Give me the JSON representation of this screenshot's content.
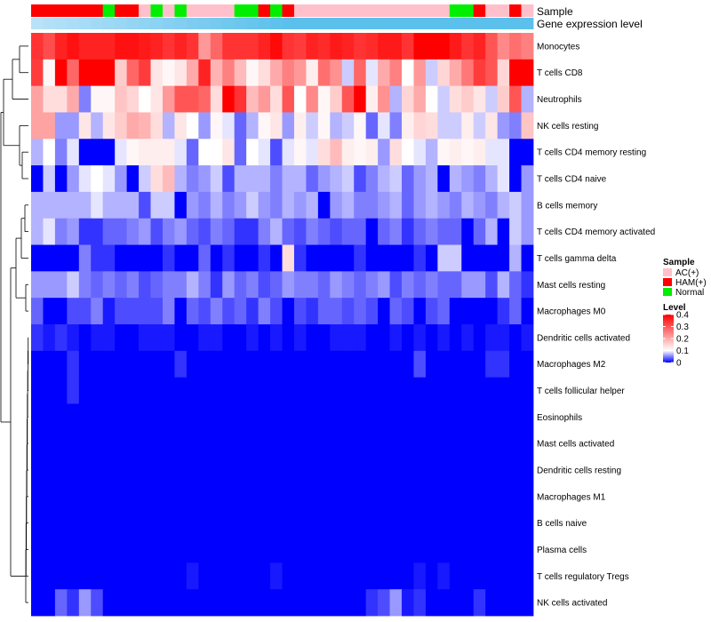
{
  "chart_data": {
    "type": "heatmap",
    "title": "",
    "annotation_tracks": [
      {
        "name": "Sample",
        "label": "Sample"
      },
      {
        "name": "Gene expression level",
        "label": "Gene expression level"
      }
    ],
    "sample_groups": [
      "HAM(+)",
      "HAM(+)",
      "HAM(+)",
      "HAM(+)",
      "HAM(+)",
      "HAM(+)",
      "Normal",
      "HAM(+)",
      "HAM(+)",
      "AC(+)",
      "Normal",
      "AC(+)",
      "Normal",
      "AC(+)",
      "AC(+)",
      "AC(+)",
      "AC(+)",
      "Normal",
      "Normal",
      "HAM(+)",
      "Normal",
      "HAM(+)",
      "AC(+)",
      "AC(+)",
      "AC(+)",
      "AC(+)",
      "AC(+)",
      "AC(+)",
      "AC(+)",
      "AC(+)",
      "AC(+)",
      "AC(+)",
      "AC(+)",
      "AC(+)",
      "AC(+)",
      "Normal",
      "Normal",
      "HAM(+)",
      "AC(+)",
      "AC(+)",
      "HAM(+)",
      "AC(+)"
    ],
    "gene_expression_track_color": "#5bc0eb",
    "gene_expression_track_start_color": "#b8e2f8",
    "rows": [
      "Monocytes",
      "T cells CD8",
      "Neutrophils",
      "NK cells resting",
      "T cells CD4 memory resting",
      "T cells CD4 naive",
      "B cells memory",
      "T cells CD4 memory activated",
      "T cells gamma delta",
      "Mast cells resting",
      "Macrophages M0",
      "Dendritic cells activated",
      "Macrophages M2",
      "T cells follicular helper",
      "Eosinophils",
      "Mast cells activated",
      "Dendritic cells resting",
      "Macrophages M1",
      "B cells naive",
      "Plasma cells",
      "T cells regulatory  Tregs",
      "NK cells activated"
    ],
    "values": [
      [
        0.34,
        0.31,
        0.36,
        0.38,
        0.36,
        0.36,
        0.36,
        0.38,
        0.38,
        0.37,
        0.36,
        0.34,
        0.36,
        0.34,
        0.22,
        0.28,
        0.34,
        0.34,
        0.34,
        0.36,
        0.39,
        0.34,
        0.33,
        0.36,
        0.35,
        0.37,
        0.36,
        0.34,
        0.35,
        0.37,
        0.37,
        0.34,
        0.4,
        0.4,
        0.4,
        0.37,
        0.34,
        0.36,
        0.3,
        0.24,
        0.27,
        0.25
      ],
      [
        0.33,
        0.11,
        0.4,
        0.28,
        0.4,
        0.4,
        0.4,
        0.16,
        0.28,
        0.33,
        0.13,
        0.11,
        0.13,
        0.2,
        0.36,
        0.19,
        0.25,
        0.18,
        0.11,
        0.14,
        0.2,
        0.25,
        0.22,
        0.12,
        0.27,
        0.23,
        0.08,
        0.28,
        0.09,
        0.2,
        0.25,
        0.1,
        0.22,
        0.08,
        0.15,
        0.2,
        0.26,
        0.33,
        0.3,
        0.15,
        0.4,
        0.4
      ],
      [
        0.21,
        0.14,
        0.14,
        0.2,
        0.05,
        0.11,
        0.11,
        0.17,
        0.15,
        0.1,
        0.13,
        0.22,
        0.3,
        0.3,
        0.28,
        0.14,
        0.4,
        0.34,
        0.18,
        0.22,
        0.14,
        0.3,
        0.1,
        0.24,
        0.11,
        0.16,
        0.3,
        0.4,
        0.12,
        0.23,
        0.07,
        0.15,
        0.2,
        0.1,
        0.08,
        0.14,
        0.16,
        0.13,
        0.08,
        0.16,
        0.3,
        0.07
      ],
      [
        0.21,
        0.21,
        0.06,
        0.06,
        0.13,
        0.07,
        0.13,
        0.16,
        0.2,
        0.19,
        0.14,
        0.07,
        0.13,
        0.1,
        0.06,
        0.11,
        0.09,
        0.04,
        0.07,
        0.11,
        0.13,
        0.06,
        0.12,
        0.08,
        0.11,
        0.07,
        0.08,
        0.11,
        0.04,
        0.09,
        0.05,
        0.12,
        0.15,
        0.14,
        0.08,
        0.08,
        0.12,
        0.08,
        0.13,
        0.06,
        0.05,
        0.17
      ],
      [
        0.07,
        0.1,
        0.05,
        0.09,
        0.0,
        0.0,
        0.0,
        0.09,
        0.11,
        0.12,
        0.12,
        0.12,
        0.09,
        0.04,
        0.1,
        0.1,
        0.13,
        0.04,
        0.1,
        0.09,
        0.03,
        0.09,
        0.11,
        0.09,
        0.14,
        0.18,
        0.12,
        0.11,
        0.12,
        0.06,
        0.14,
        0.1,
        0.09,
        0.07,
        0.11,
        0.12,
        0.11,
        0.12,
        0.09,
        0.09,
        0.0,
        0.0
      ],
      [
        0.0,
        0.08,
        0.0,
        0.06,
        0.09,
        0.1,
        0.09,
        0.06,
        0.0,
        0.08,
        0.14,
        0.18,
        0.07,
        0.05,
        0.06,
        0.08,
        0.03,
        0.07,
        0.07,
        0.07,
        0.05,
        0.07,
        0.07,
        0.04,
        0.06,
        0.07,
        0.08,
        0.03,
        0.05,
        0.07,
        0.08,
        0.04,
        0.06,
        0.07,
        0.0,
        0.07,
        0.06,
        0.05,
        0.07,
        0.09,
        0.0,
        0.06
      ],
      [
        0.07,
        0.07,
        0.07,
        0.07,
        0.07,
        0.09,
        0.07,
        0.07,
        0.07,
        0.03,
        0.08,
        0.08,
        0.0,
        0.06,
        0.05,
        0.07,
        0.05,
        0.06,
        0.08,
        0.06,
        0.05,
        0.07,
        0.06,
        0.07,
        0.0,
        0.06,
        0.07,
        0.05,
        0.05,
        0.06,
        0.07,
        0.04,
        0.06,
        0.07,
        0.06,
        0.05,
        0.07,
        0.06,
        0.05,
        0.07,
        0.08,
        0.06
      ],
      [
        0.07,
        0.09,
        0.05,
        0.06,
        0.02,
        0.02,
        0.04,
        0.04,
        0.05,
        0.06,
        0.03,
        0.05,
        0.06,
        0.04,
        0.03,
        0.05,
        0.04,
        0.02,
        0.02,
        0.05,
        0.07,
        0.04,
        0.03,
        0.05,
        0.04,
        0.03,
        0.04,
        0.04,
        0.0,
        0.04,
        0.05,
        0.02,
        0.04,
        0.05,
        0.04,
        0.04,
        0.0,
        0.04,
        0.07,
        0.0,
        0.08,
        0.06
      ],
      [
        0.0,
        0.0,
        0.0,
        0.0,
        0.05,
        0.02,
        0.02,
        0.0,
        0.0,
        0.0,
        0.0,
        0.02,
        0.0,
        0.0,
        0.04,
        0.0,
        0.02,
        0.0,
        0.0,
        0.02,
        0.0,
        0.14,
        0.02,
        0.0,
        0.0,
        0.0,
        0.0,
        0.02,
        0.0,
        0.0,
        0.0,
        0.0,
        0.02,
        0.0,
        0.08,
        0.08,
        0.0,
        0.0,
        0.0,
        0.0,
        0.07,
        0.0
      ],
      [
        0.06,
        0.06,
        0.06,
        0.08,
        0.05,
        0.04,
        0.05,
        0.04,
        0.05,
        0.03,
        0.04,
        0.05,
        0.05,
        0.07,
        0.05,
        0.02,
        0.06,
        0.04,
        0.05,
        0.03,
        0.04,
        0.06,
        0.05,
        0.05,
        0.04,
        0.06,
        0.05,
        0.04,
        0.05,
        0.06,
        0.03,
        0.05,
        0.04,
        0.05,
        0.04,
        0.04,
        0.06,
        0.06,
        0.03,
        0.07,
        0.04,
        0.02
      ],
      [
        0.04,
        0.0,
        0.0,
        0.03,
        0.03,
        0.05,
        0.01,
        0.03,
        0.03,
        0.03,
        0.03,
        0.05,
        0.0,
        0.04,
        0.03,
        0.05,
        0.03,
        0.04,
        0.02,
        0.05,
        0.03,
        0.0,
        0.03,
        0.02,
        0.04,
        0.04,
        0.03,
        0.04,
        0.03,
        0.0,
        0.04,
        0.03,
        0.0,
        0.03,
        0.04,
        0.0,
        0.0,
        0.0,
        0.0,
        0.02,
        0.04,
        0.0
      ],
      [
        0.02,
        0.01,
        0.02,
        0.01,
        0.0,
        0.01,
        0.01,
        0.0,
        0.0,
        0.01,
        0.01,
        0.01,
        0.0,
        0.0,
        0.01,
        0.01,
        0.0,
        0.0,
        0.01,
        0.0,
        0.01,
        0.0,
        0.01,
        0.0,
        0.0,
        0.01,
        0.01,
        0.01,
        0.0,
        0.0,
        0.01,
        0.0,
        0.01,
        0.0,
        0.01,
        0.0,
        0.01,
        0.0,
        0.01,
        0.01,
        0.0,
        0.01
      ],
      [
        0.0,
        0.0,
        0.0,
        0.02,
        0.0,
        0.0,
        0.0,
        0.0,
        0.0,
        0.0,
        0.0,
        0.0,
        0.02,
        0.0,
        0.0,
        0.0,
        0.0,
        0.0,
        0.0,
        0.0,
        0.0,
        0.0,
        0.0,
        0.0,
        0.0,
        0.0,
        0.0,
        0.0,
        0.0,
        0.0,
        0.0,
        0.0,
        0.03,
        0.0,
        0.0,
        0.0,
        0.0,
        0.0,
        0.02,
        0.02,
        0.0,
        0.0
      ],
      [
        0.0,
        0.0,
        0.0,
        0.02,
        0.0,
        0.0,
        0.0,
        0.0,
        0.0,
        0.0,
        0.0,
        0.0,
        0.0,
        0.0,
        0.0,
        0.0,
        0.0,
        0.0,
        0.0,
        0.0,
        0.0,
        0.0,
        0.0,
        0.0,
        0.0,
        0.0,
        0.0,
        0.0,
        0.0,
        0.0,
        0.0,
        0.0,
        0.0,
        0.0,
        0.0,
        0.0,
        0.0,
        0.0,
        0.0,
        0.0,
        0.0,
        0.0
      ],
      [
        0.0,
        0.0,
        0.0,
        0.0,
        0.0,
        0.0,
        0.0,
        0.0,
        0.0,
        0.0,
        0.0,
        0.0,
        0.0,
        0.0,
        0.0,
        0.0,
        0.0,
        0.0,
        0.0,
        0.0,
        0.0,
        0.0,
        0.0,
        0.0,
        0.0,
        0.0,
        0.0,
        0.0,
        0.0,
        0.0,
        0.0,
        0.0,
        0.0,
        0.0,
        0.0,
        0.0,
        0.0,
        0.0,
        0.0,
        0.0,
        0.0,
        0.0
      ],
      [
        0.0,
        0.0,
        0.0,
        0.0,
        0.0,
        0.0,
        0.0,
        0.0,
        0.0,
        0.0,
        0.0,
        0.0,
        0.0,
        0.0,
        0.0,
        0.0,
        0.0,
        0.0,
        0.0,
        0.0,
        0.0,
        0.0,
        0.0,
        0.0,
        0.0,
        0.0,
        0.0,
        0.0,
        0.0,
        0.0,
        0.0,
        0.0,
        0.0,
        0.0,
        0.0,
        0.0,
        0.0,
        0.0,
        0.0,
        0.0,
        0.0,
        0.0
      ],
      [
        0.0,
        0.0,
        0.0,
        0.0,
        0.0,
        0.0,
        0.0,
        0.0,
        0.0,
        0.0,
        0.0,
        0.0,
        0.0,
        0.0,
        0.0,
        0.0,
        0.0,
        0.0,
        0.0,
        0.0,
        0.0,
        0.0,
        0.0,
        0.0,
        0.0,
        0.0,
        0.0,
        0.0,
        0.0,
        0.0,
        0.0,
        0.0,
        0.0,
        0.0,
        0.0,
        0.0,
        0.0,
        0.0,
        0.0,
        0.0,
        0.0,
        0.0
      ],
      [
        0.0,
        0.0,
        0.0,
        0.0,
        0.0,
        0.0,
        0.0,
        0.0,
        0.0,
        0.0,
        0.0,
        0.0,
        0.0,
        0.0,
        0.0,
        0.0,
        0.0,
        0.0,
        0.0,
        0.0,
        0.0,
        0.0,
        0.0,
        0.0,
        0.0,
        0.0,
        0.0,
        0.0,
        0.0,
        0.0,
        0.0,
        0.0,
        0.0,
        0.0,
        0.0,
        0.0,
        0.0,
        0.0,
        0.0,
        0.0,
        0.0,
        0.0
      ],
      [
        0.0,
        0.0,
        0.0,
        0.0,
        0.0,
        0.0,
        0.0,
        0.0,
        0.0,
        0.0,
        0.0,
        0.0,
        0.0,
        0.0,
        0.0,
        0.0,
        0.0,
        0.0,
        0.0,
        0.0,
        0.0,
        0.0,
        0.0,
        0.0,
        0.0,
        0.0,
        0.0,
        0.0,
        0.0,
        0.0,
        0.0,
        0.0,
        0.0,
        0.0,
        0.0,
        0.0,
        0.0,
        0.0,
        0.0,
        0.0,
        0.0,
        0.0
      ],
      [
        0.0,
        0.0,
        0.0,
        0.0,
        0.0,
        0.0,
        0.0,
        0.0,
        0.0,
        0.0,
        0.0,
        0.0,
        0.0,
        0.0,
        0.0,
        0.0,
        0.0,
        0.0,
        0.0,
        0.0,
        0.0,
        0.0,
        0.0,
        0.0,
        0.0,
        0.0,
        0.0,
        0.0,
        0.0,
        0.0,
        0.0,
        0.0,
        0.0,
        0.0,
        0.0,
        0.0,
        0.0,
        0.0,
        0.0,
        0.0,
        0.0,
        0.0
      ],
      [
        0.0,
        0.0,
        0.0,
        0.0,
        0.0,
        0.0,
        0.0,
        0.0,
        0.0,
        0.0,
        0.0,
        0.0,
        0.0,
        0.01,
        0.0,
        0.0,
        0.0,
        0.0,
        0.0,
        0.0,
        0.01,
        0.0,
        0.0,
        0.0,
        0.0,
        0.0,
        0.0,
        0.0,
        0.0,
        0.0,
        0.0,
        0.0,
        0.01,
        0.0,
        0.01,
        0.0,
        0.0,
        0.0,
        0.0,
        0.0,
        0.0,
        0.0
      ],
      [
        0.0,
        0.0,
        0.04,
        0.02,
        0.06,
        0.03,
        0.0,
        0.0,
        0.0,
        0.0,
        0.0,
        0.0,
        0.0,
        0.0,
        0.0,
        0.0,
        0.0,
        0.0,
        0.0,
        0.0,
        0.0,
        0.0,
        0.0,
        0.0,
        0.0,
        0.0,
        0.0,
        0.0,
        0.02,
        0.03,
        0.06,
        0.01,
        0.02,
        0.0,
        0.0,
        0.0,
        0.0,
        0.02,
        0.0,
        0.0,
        0.0,
        0.0
      ]
    ],
    "color_scale": {
      "min": 0,
      "mid": 0.1,
      "max": 0.4,
      "low_color": "#0000ff",
      "mid_color": "#ffffff",
      "high_color": "#ff0000"
    },
    "legend": {
      "sample_title": "Sample",
      "sample_entries": [
        {
          "label": "AC(+)",
          "color": "#ffc0cb"
        },
        {
          "label": "HAM(+)",
          "color": "#ff0000"
        },
        {
          "label": "Normal",
          "color": "#00ee00"
        }
      ],
      "level_title": "Level",
      "level_ticks": [
        {
          "label": "0.4",
          "value": 0.4
        },
        {
          "label": "0.3",
          "value": 0.3
        },
        {
          "label": "0.2",
          "value": 0.2
        },
        {
          "label": "0.1",
          "value": 0.1
        },
        {
          "label": "0",
          "value": 0.0
        }
      ],
      "placement": "right"
    },
    "dendrogram": "rows"
  }
}
